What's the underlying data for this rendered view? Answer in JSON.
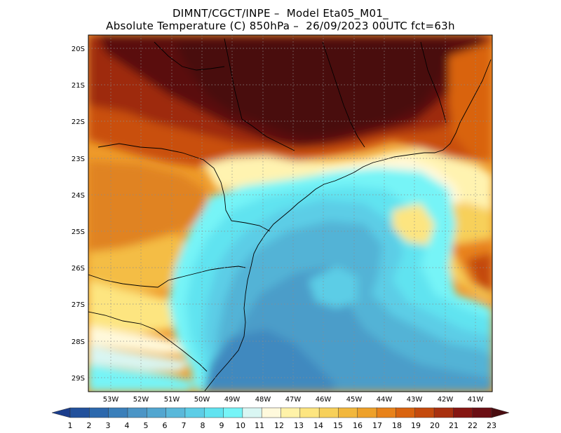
{
  "title": {
    "line1": "DIMNT/CGCT/INPE –  Model Eta05_M01_",
    "line2": "Absolute Temperature (C) 850hPa –  26/09/2023 00UTC fct=63h"
  },
  "map": {
    "region": "Southern and southeastern Brazil with adjacent South Atlantic",
    "variable": "Absolute Temperature (C)",
    "level": "850hPa",
    "lat_labels": [
      "20S",
      "21S",
      "22S",
      "23S",
      "24S",
      "25S",
      "26S",
      "27S",
      "28S",
      "29S"
    ],
    "lon_labels": [
      "53W",
      "52W",
      "51W",
      "50W",
      "49W",
      "48W",
      "47W",
      "46W",
      "45W",
      "44W",
      "43W",
      "42W",
      "41W"
    ],
    "lat_range": [
      -29.4,
      -19.75
    ],
    "lon_range": [
      -53.75,
      -40.45
    ],
    "gridlines": true
  },
  "colorbar": {
    "labels": [
      "1",
      "2",
      "3",
      "4",
      "5",
      "6",
      "7",
      "8",
      "9",
      "10",
      "11",
      "12",
      "13",
      "14",
      "15",
      "16",
      "17",
      "18",
      "19",
      "20",
      "21",
      "22",
      "23"
    ],
    "colors": [
      "#1a3d8c",
      "#22519c",
      "#2c68ad",
      "#3a7fba",
      "#4b95c6",
      "#52a6d0",
      "#59b8da",
      "#5ccde6",
      "#61e3f0",
      "#76f4f7",
      "#d9f6f3",
      "#fff9dc",
      "#fff2a8",
      "#fde580",
      "#f7d05a",
      "#f2b73c",
      "#eea12a",
      "#e8821a",
      "#d9630f",
      "#c44a0d",
      "#a8300f",
      "#861612",
      "#6b0f14",
      "#4a0d10"
    ]
  }
}
